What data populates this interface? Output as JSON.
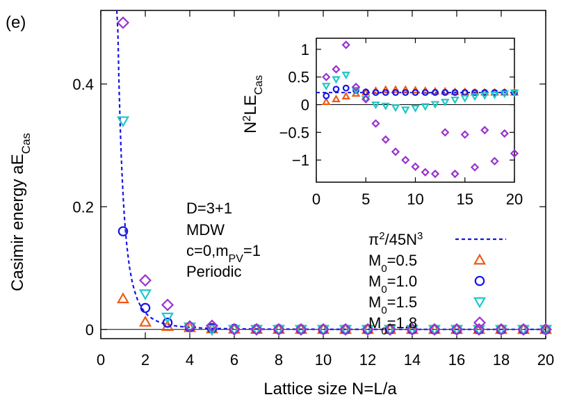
{
  "panel_label": "(e)",
  "colors": {
    "m05": "#f05a14",
    "m10": "#1414e6",
    "m15": "#1ec8c8",
    "m18": "#9a32cd",
    "curve": "#1414e6",
    "axis": "#000000"
  },
  "annotation": {
    "line1": "D=3+1",
    "line2": "MDW",
    "line3_a": "c=0,m",
    "line3_sub": "PV",
    "line3_b": "=1",
    "line4": "Periodic"
  },
  "legend": [
    {
      "label_a": "π",
      "sup": "2",
      "label_b": "/45N",
      "sup2": "3",
      "marker": "dashed-line"
    },
    {
      "label_a": "M",
      "sub": "0",
      "label_b": "=0.5",
      "marker": "triangle-up"
    },
    {
      "label_a": "M",
      "sub": "0",
      "label_b": "=1.0",
      "marker": "circle"
    },
    {
      "label_a": "M",
      "sub": "0",
      "label_b": "=1.5",
      "marker": "triangle-down"
    },
    {
      "label_a": "M",
      "sub": "0",
      "label_b": "=1.8",
      "marker": "diamond"
    }
  ],
  "chart_data": [
    {
      "type": "scatter",
      "xlabel": "Lattice size N=L/a",
      "ylabel_a": "Casimir energy aE",
      "ylabel_sub": "Cas",
      "xlim": [
        0,
        20
      ],
      "ylim": [
        -0.015,
        0.52
      ],
      "xticks": [
        0,
        2,
        4,
        6,
        8,
        10,
        12,
        14,
        16,
        18,
        20
      ],
      "yticks": [
        0,
        0.2,
        0.4
      ],
      "ytick_labels": [
        "0",
        "0.2",
        "0.4"
      ],
      "curve": {
        "name": "π²/45N³",
        "coefficient": 0.21932,
        "x_start": 0.72
      },
      "series": [
        {
          "name": "M0=0.5",
          "marker": "triangle-up",
          "x": [
            1,
            2,
            3,
            4,
            5,
            6,
            7,
            8,
            9,
            10,
            11,
            12,
            13,
            14,
            15,
            16,
            17,
            18,
            19,
            20
          ],
          "y": [
            0.05,
            0.012,
            0.005,
            0.003,
            0.001,
            0.0005,
            0.0003,
            0.0002,
            0.0001,
            0.0001,
            0,
            0,
            0,
            0,
            0,
            0,
            0,
            0,
            0,
            0
          ]
        },
        {
          "name": "M0=1.0",
          "marker": "circle",
          "x": [
            1,
            2,
            3,
            4,
            5,
            6,
            7,
            8,
            9,
            10,
            11,
            12,
            13,
            14,
            15,
            16,
            17,
            18,
            19,
            20
          ],
          "y": [
            0.16,
            0.035,
            0.011,
            0.004,
            0.002,
            0.001,
            0.0006,
            0.0004,
            0.0003,
            0.0002,
            0.0001,
            0.0001,
            0.0001,
            0.0001,
            0,
            0,
            0,
            0,
            0,
            0
          ]
        },
        {
          "name": "M0=1.5",
          "marker": "triangle-down",
          "x": [
            1,
            2,
            3,
            4,
            5,
            6,
            7,
            8,
            9,
            10,
            11,
            12,
            13,
            14,
            15,
            16,
            17,
            18,
            19,
            20
          ],
          "y": [
            0.34,
            0.058,
            0.02,
            0.004,
            0,
            0,
            0,
            0,
            0,
            0,
            0,
            0,
            0,
            0,
            0,
            0,
            0,
            0,
            0,
            0
          ]
        },
        {
          "name": "M0=1.8",
          "marker": "diamond",
          "x": [
            1,
            2,
            3,
            4,
            5,
            6,
            7,
            8,
            9,
            10,
            11,
            12,
            13,
            14,
            15,
            16,
            17,
            18,
            19,
            20
          ],
          "y": [
            0.5,
            0.08,
            0.04,
            0.005,
            0.006,
            0,
            0,
            0,
            0,
            0,
            0,
            0,
            0,
            0,
            0,
            0,
            0,
            0,
            0,
            0
          ]
        }
      ]
    },
    {
      "type": "scatter",
      "inset": true,
      "ylabel_a": "N",
      "ylabel_sup": "2",
      "ylabel_b": "LE",
      "ylabel_sub": "Cas",
      "xlim": [
        0,
        20
      ],
      "ylim": [
        -1.4,
        1.2
      ],
      "xticks": [
        0,
        5,
        10,
        15,
        20
      ],
      "yticks": [
        1,
        0.5,
        0,
        -0.5,
        -1
      ],
      "ytick_labels": [
        "1",
        "0.5",
        "0",
        "−0.5",
        "−1"
      ],
      "curve_value": 0.2193,
      "series": [
        {
          "name": "M0=0.5",
          "marker": "triangle-up",
          "x": [
            1,
            2,
            3,
            4,
            5,
            6,
            7,
            8,
            9,
            10,
            11,
            12,
            13,
            14,
            15,
            16,
            17,
            18,
            19,
            20
          ],
          "y": [
            0.05,
            0.1,
            0.15,
            0.2,
            0.22,
            0.25,
            0.27,
            0.27,
            0.27,
            0.26,
            0.25,
            0.24,
            0.24,
            0.23,
            0.23,
            0.22,
            0.22,
            0.22,
            0.22,
            0.22
          ]
        },
        {
          "name": "M0=1.0",
          "marker": "circle",
          "x": [
            1,
            2,
            3,
            4,
            5,
            6,
            7,
            8,
            9,
            10,
            11,
            12,
            13,
            14,
            15,
            16,
            17,
            18,
            19,
            20
          ],
          "y": [
            0.16,
            0.28,
            0.3,
            0.26,
            0.23,
            0.22,
            0.22,
            0.22,
            0.22,
            0.22,
            0.22,
            0.22,
            0.22,
            0.22,
            0.22,
            0.22,
            0.22,
            0.22,
            0.22,
            0.22
          ]
        },
        {
          "name": "M0=1.5",
          "marker": "triangle-down",
          "x": [
            1,
            2,
            3,
            4,
            5,
            6,
            7,
            8,
            9,
            10,
            11,
            12,
            13,
            14,
            15,
            16,
            17,
            18,
            19,
            20
          ],
          "y": [
            0.34,
            0.46,
            0.54,
            0.26,
            0.1,
            0,
            -0.02,
            -0.05,
            -0.09,
            -0.06,
            -0.03,
            0.01,
            0.05,
            0.09,
            0.12,
            0.15,
            0.17,
            0.18,
            0.2,
            0.22
          ]
        },
        {
          "name": "M0=1.8",
          "marker": "diamond",
          "x": [
            1,
            2,
            3,
            4,
            5,
            6,
            7,
            8,
            9,
            10,
            11,
            12,
            13,
            14,
            15,
            16,
            17,
            18,
            19,
            20
          ],
          "y": [
            0.5,
            0.64,
            1.08,
            0.32,
            0.1,
            -0.34,
            -0.63,
            -0.85,
            -1.0,
            -1.12,
            -1.22,
            -1.25,
            -0.5,
            -1.25,
            -0.54,
            -1.13,
            -0.46,
            -1.02,
            -0.52,
            -0.88
          ]
        }
      ]
    }
  ]
}
